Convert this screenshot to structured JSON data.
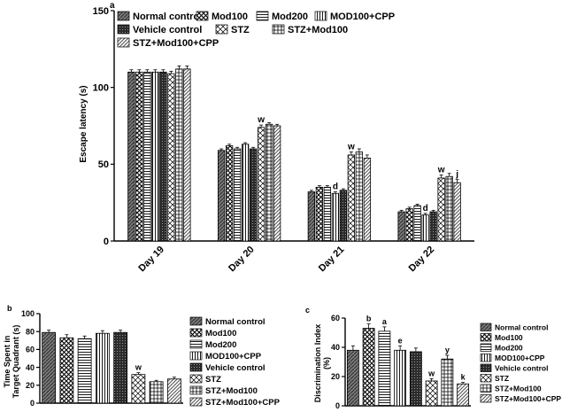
{
  "patterns": [
    "normal-control",
    "mod100",
    "mod200",
    "mod100-cpp",
    "vehicle-control",
    "stz",
    "stz-mod100",
    "stz-mod100-cpp"
  ],
  "charts": [
    {
      "panel": "a",
      "type": "bar",
      "ylabel": "Escape latency (s)",
      "ylim": [
        0,
        150
      ],
      "yticks": [
        0,
        50,
        100,
        150
      ],
      "categories": [
        "Day 19",
        "Day 20",
        "Day 21",
        "Day 22"
      ],
      "series": [
        {
          "name": "Normal control",
          "values": [
            110,
            59,
            32,
            19
          ],
          "errors": [
            1.5,
            1,
            1,
            1
          ]
        },
        {
          "name": "Mod100",
          "values": [
            110,
            62,
            35,
            21
          ],
          "errors": [
            1.5,
            1,
            1,
            1
          ]
        },
        {
          "name": "Mod200",
          "values": [
            110,
            60,
            35,
            23
          ],
          "errors": [
            1.5,
            1,
            1,
            1
          ]
        },
        {
          "name": "MOD100+CPP",
          "values": [
            110,
            63,
            31,
            17
          ],
          "errors": [
            1.5,
            1,
            1,
            1
          ]
        },
        {
          "name": "Vehicle control",
          "values": [
            110,
            60,
            33,
            19
          ],
          "errors": [
            1.5,
            1,
            1,
            1
          ]
        },
        {
          "name": "STZ",
          "values": [
            109,
            74,
            56,
            41
          ],
          "errors": [
            1.5,
            1.5,
            2,
            2
          ]
        },
        {
          "name": "STZ+Mod100",
          "values": [
            112,
            76,
            58,
            42
          ],
          "errors": [
            2,
            1,
            2,
            2
          ]
        },
        {
          "name": "STZ+Mod100+CPP",
          "values": [
            112,
            75,
            54,
            38
          ],
          "errors": [
            2,
            1,
            2,
            2
          ]
        }
      ],
      "annotations": [
        {
          "category": 1,
          "series": 5,
          "text": "w"
        },
        {
          "category": 2,
          "series": 3,
          "text": "d"
        },
        {
          "category": 2,
          "series": 5,
          "text": "w"
        },
        {
          "category": 3,
          "series": 3,
          "text": "d"
        },
        {
          "category": 3,
          "series": 5,
          "text": "w"
        },
        {
          "category": 3,
          "series": 7,
          "text": "j"
        }
      ],
      "legend": [
        "Normal control",
        "Mod100",
        "Mod200",
        "MOD100+CPP",
        "Vehicle control",
        "STZ",
        "STZ+Mod100",
        "STZ+Mod100+CPP"
      ]
    },
    {
      "panel": "b",
      "type": "bar",
      "ylabel_lines": [
        "Time Spent in",
        "Target Quadrant (s)"
      ],
      "ylim": [
        0,
        100
      ],
      "yticks": [
        0,
        20,
        40,
        60,
        80,
        100
      ],
      "categories": [
        "Normal control",
        "Mod100",
        "Mod200",
        "MOD100+CPP",
        "Vehicle control",
        "STZ",
        "STZ+Mod100",
        "STZ+Mod100+CPP"
      ],
      "values": [
        79,
        73,
        72,
        78,
        79,
        32,
        24,
        27
      ],
      "errors": [
        2.5,
        3.5,
        3,
        3,
        2.5,
        2,
        1.5,
        2
      ],
      "annotations": [
        {
          "index": 5,
          "text": "w"
        }
      ],
      "legend": [
        "Normal control",
        "Mod100",
        "Mod200",
        "MOD100+CPP",
        "Vehicle control",
        "STZ",
        "STZ+Mod100",
        "STZ+Mod100+CPP"
      ]
    },
    {
      "panel": "c",
      "type": "bar",
      "ylabel_lines": [
        "Discrimination Index",
        "(%)"
      ],
      "ylim": [
        0,
        60
      ],
      "yticks": [
        0,
        20,
        40,
        60
      ],
      "categories": [
        "Normal control",
        "Mod100",
        "Mod200",
        "MOD100+CPP",
        "Vehicle control",
        "STZ",
        "STZ+Mod100",
        "STZ+Mod100+CPP"
      ],
      "values": [
        38,
        53,
        51,
        38,
        37,
        17,
        32,
        15
      ],
      "errors": [
        3,
        3,
        3,
        3,
        2.5,
        1.5,
        2.5,
        1
      ],
      "annotations": [
        {
          "index": 1,
          "text": "b"
        },
        {
          "index": 2,
          "text": "a"
        },
        {
          "index": 3,
          "text": "e"
        },
        {
          "index": 5,
          "text": "w"
        },
        {
          "index": 6,
          "text": "y"
        },
        {
          "index": 7,
          "text": "k"
        }
      ],
      "legend": [
        "Normal control",
        "Mod100",
        "Mod200",
        "MOD100+CPP",
        "Vehicle control",
        "STZ",
        "STZ+Mod100",
        "STZ+Mod100+CPP"
      ]
    }
  ]
}
